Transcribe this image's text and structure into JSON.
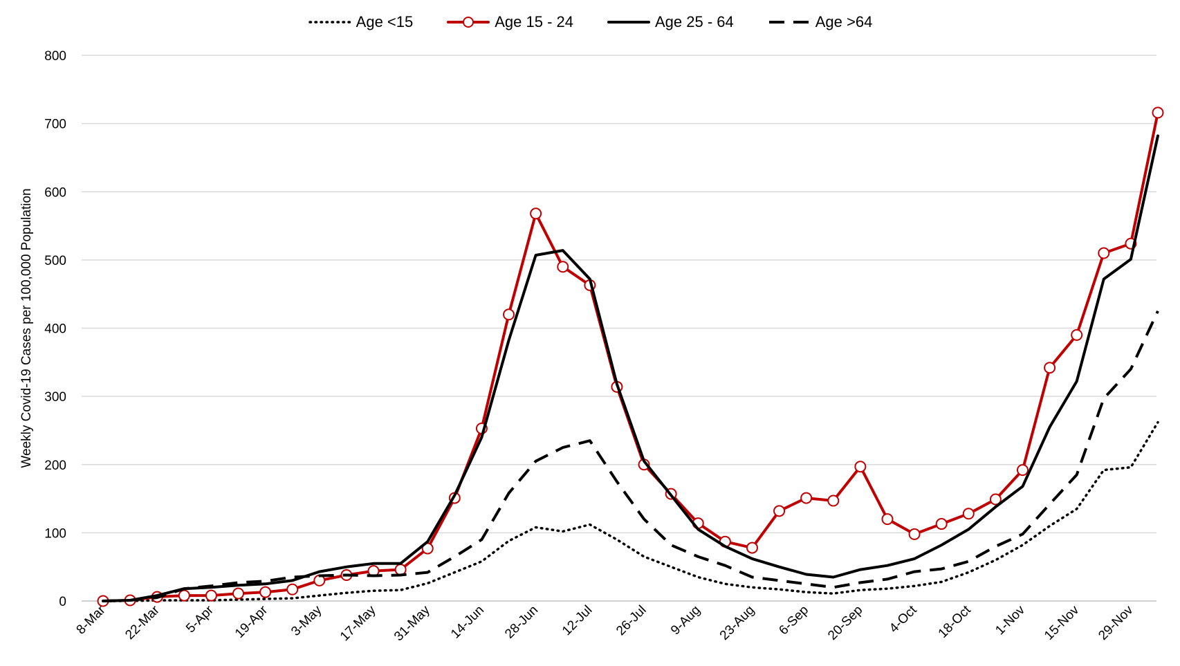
{
  "chart_data": {
    "type": "line",
    "title": "",
    "xlabel": "",
    "ylabel": "Weekly Covid-19 Cases per 100,000 Population",
    "ylim": [
      0,
      800
    ],
    "yticks": [
      0,
      100,
      200,
      300,
      400,
      500,
      600,
      700,
      800
    ],
    "grid": "horizontal",
    "legend_position": "top",
    "x_tick_labels": [
      "8-Mar",
      "22-Mar",
      "5-Apr",
      "19-Apr",
      "3-May",
      "17-May",
      "31-May",
      "14-Jun",
      "28-Jun",
      "12-Jul",
      "26-Jul",
      "9-Aug",
      "23-Aug",
      "6-Sep",
      "20-Sep",
      "4-Oct",
      "18-Oct",
      "1-Nov",
      "15-Nov",
      "29-Nov"
    ],
    "x": [
      "8-Mar",
      "15-Mar",
      "22-Mar",
      "29-Mar",
      "5-Apr",
      "12-Apr",
      "19-Apr",
      "26-Apr",
      "3-May",
      "10-May",
      "17-May",
      "24-May",
      "31-May",
      "7-Jun",
      "14-Jun",
      "21-Jun",
      "28-Jun",
      "5-Jul",
      "12-Jul",
      "19-Jul",
      "26-Jul",
      "2-Aug",
      "9-Aug",
      "16-Aug",
      "23-Aug",
      "30-Aug",
      "6-Sep",
      "13-Sep",
      "20-Sep",
      "27-Sep",
      "4-Oct",
      "11-Oct",
      "18-Oct",
      "25-Oct",
      "1-Nov",
      "8-Nov",
      "15-Nov",
      "22-Nov",
      "29-Nov",
      "6-Dec"
    ],
    "series": [
      {
        "name": "Age <15",
        "style": "dotted",
        "color": "#000000",
        "values": [
          0,
          0,
          1,
          1,
          1,
          2,
          3,
          4,
          8,
          12,
          15,
          16,
          26,
          42,
          58,
          88,
          108,
          102,
          112,
          90,
          65,
          50,
          35,
          25,
          20,
          17,
          13,
          11,
          16,
          18,
          22,
          28,
          42,
          60,
          82,
          110,
          135,
          192,
          196,
          262
        ]
      },
      {
        "name": "Age 15 - 24",
        "style": "solid-marker",
        "color": "#c00000",
        "values": [
          0,
          1,
          6,
          8,
          8,
          11,
          13,
          17,
          30,
          38,
          44,
          46,
          77,
          151,
          253,
          420,
          568,
          490,
          463,
          314,
          200,
          157,
          114,
          87,
          78,
          132,
          151,
          147,
          197,
          120,
          98,
          113,
          128,
          149,
          192,
          342,
          390,
          510,
          524,
          716
        ]
      },
      {
        "name": "Age 25 - 64",
        "style": "solid",
        "color": "#000000",
        "values": [
          0,
          1,
          8,
          18,
          20,
          23,
          25,
          30,
          43,
          50,
          55,
          55,
          87,
          155,
          240,
          382,
          507,
          514,
          472,
          318,
          205,
          155,
          105,
          80,
          62,
          50,
          39,
          35,
          46,
          52,
          62,
          82,
          105,
          138,
          168,
          255,
          322,
          472,
          501,
          682
        ]
      },
      {
        "name": "Age >64",
        "style": "dashed",
        "color": "#000000",
        "values": [
          0,
          1,
          5,
          18,
          22,
          27,
          29,
          35,
          37,
          38,
          37,
          38,
          42,
          65,
          90,
          158,
          205,
          225,
          235,
          175,
          120,
          82,
          65,
          52,
          35,
          30,
          25,
          20,
          27,
          32,
          43,
          47,
          58,
          80,
          98,
          142,
          185,
          297,
          340,
          425
        ]
      }
    ]
  }
}
